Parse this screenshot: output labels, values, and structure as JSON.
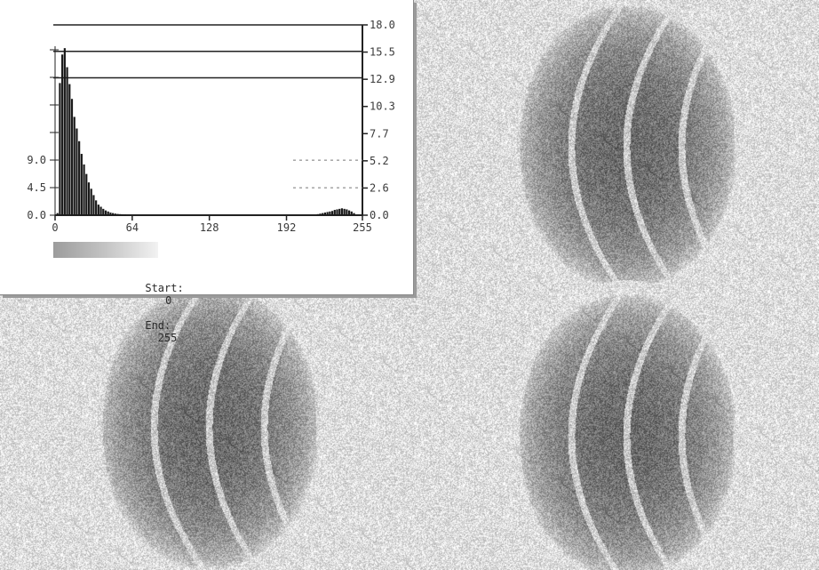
{
  "window": {
    "title": "",
    "left_corner_glyph": "",
    "right_corner_glyph": ""
  },
  "histogram": {
    "start_label": "Start:",
    "start_value": "0",
    "end_label": "End:",
    "end_value": "255"
  },
  "chart_data": {
    "type": "bar",
    "xlabel": "",
    "ylabel": "",
    "x_ticks": [
      "0",
      "64",
      "128",
      "192",
      "255"
    ],
    "xlim": [
      0,
      255
    ],
    "left_ticks": [
      "0.0",
      "4.5",
      "9.0",
      "",
      "",
      "",
      ""
    ],
    "right_ticks": [
      "0.0",
      "2.6",
      "5.2",
      "7.7",
      "10.3",
      "12.9",
      "15.5",
      "18.0"
    ],
    "ylim": [
      0,
      18.0
    ],
    "horizontal_levels": [
      13.0,
      15.5,
      18.0
    ],
    "bins": [
      {
        "x": 2,
        "y": 0.2
      },
      {
        "x": 4,
        "y": 12.5
      },
      {
        "x": 6,
        "y": 15.2
      },
      {
        "x": 8,
        "y": 15.8
      },
      {
        "x": 10,
        "y": 14.0
      },
      {
        "x": 12,
        "y": 12.4
      },
      {
        "x": 14,
        "y": 11.0
      },
      {
        "x": 16,
        "y": 9.3
      },
      {
        "x": 18,
        "y": 8.2
      },
      {
        "x": 20,
        "y": 7.0
      },
      {
        "x": 22,
        "y": 5.8
      },
      {
        "x": 24,
        "y": 4.8
      },
      {
        "x": 26,
        "y": 3.9
      },
      {
        "x": 28,
        "y": 3.1
      },
      {
        "x": 30,
        "y": 2.5
      },
      {
        "x": 32,
        "y": 1.9
      },
      {
        "x": 34,
        "y": 1.4
      },
      {
        "x": 36,
        "y": 1.0
      },
      {
        "x": 38,
        "y": 0.8
      },
      {
        "x": 40,
        "y": 0.6
      },
      {
        "x": 42,
        "y": 0.45
      },
      {
        "x": 44,
        "y": 0.35
      },
      {
        "x": 46,
        "y": 0.25
      },
      {
        "x": 48,
        "y": 0.2
      },
      {
        "x": 50,
        "y": 0.15
      },
      {
        "x": 52,
        "y": 0.12
      },
      {
        "x": 54,
        "y": 0.1
      },
      {
        "x": 56,
        "y": 0.08
      },
      {
        "x": 58,
        "y": 0.06
      },
      {
        "x": 218,
        "y": 0.1
      },
      {
        "x": 220,
        "y": 0.15
      },
      {
        "x": 222,
        "y": 0.2
      },
      {
        "x": 224,
        "y": 0.25
      },
      {
        "x": 226,
        "y": 0.3
      },
      {
        "x": 228,
        "y": 0.35
      },
      {
        "x": 230,
        "y": 0.4
      },
      {
        "x": 232,
        "y": 0.5
      },
      {
        "x": 234,
        "y": 0.55
      },
      {
        "x": 236,
        "y": 0.6
      },
      {
        "x": 238,
        "y": 0.65
      },
      {
        "x": 240,
        "y": 0.6
      },
      {
        "x": 242,
        "y": 0.55
      },
      {
        "x": 244,
        "y": 0.45
      },
      {
        "x": 246,
        "y": 0.35
      },
      {
        "x": 248,
        "y": 0.2
      }
    ]
  },
  "patterns": [
    {
      "name": "top-right",
      "cx": 705,
      "cy": 165
    },
    {
      "name": "bottom-left",
      "cx": 235,
      "cy": 480
    },
    {
      "name": "bottom-right",
      "cx": 705,
      "cy": 490
    }
  ]
}
